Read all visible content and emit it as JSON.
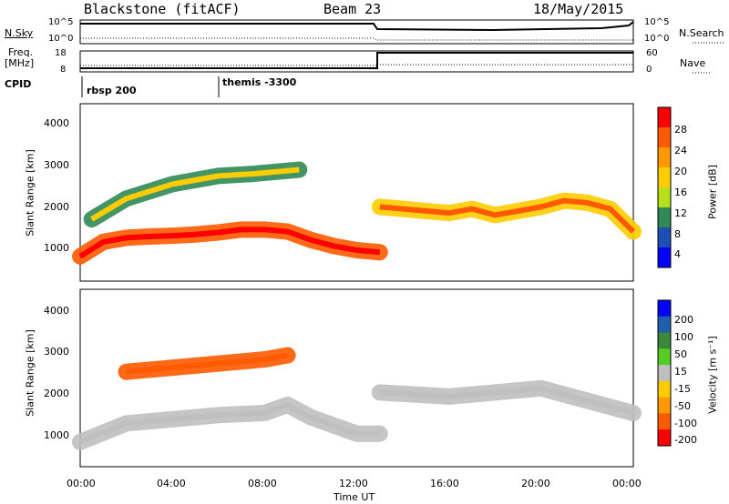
{
  "header": {
    "station": "Blackstone (fitACF)",
    "beam": "Beam 23",
    "date": "18/May/2015"
  },
  "top_panels": {
    "nsky_label": "N.Sky",
    "nsearch_label": "N.Search",
    "nsky_ticks": [
      "10^5",
      "10^0"
    ],
    "nsearch_ticks": [
      "10^5",
      "10^0"
    ],
    "freq_label_1": "Freq.",
    "freq_label_2": "[MHz]",
    "freq_ticks": [
      "18",
      "8"
    ],
    "nave_label": "Nave",
    "nave_ticks": [
      "60",
      "0"
    ],
    "cpid_label": "CPID",
    "cpid_1": "rbsp 200",
    "cpid_2": "themis -3300"
  },
  "power_colorbar": {
    "label": "Power [dB]",
    "ticks": [
      "28",
      "24",
      "20",
      "16",
      "12",
      "8",
      "4"
    ],
    "colors": [
      "#ff0000",
      "#ff5a00",
      "#ff9900",
      "#ffcc00",
      "#b7e01a",
      "#2f8a55",
      "#1c4fb5",
      "#0000ff"
    ]
  },
  "velocity_colorbar": {
    "label": "Velocity [m s⁻¹]",
    "ticks": [
      "200",
      "100",
      "50",
      "15",
      "-15",
      "-50",
      "-100",
      "-200"
    ],
    "colors": [
      "#0000ff",
      "#1f5fb0",
      "#3a8a3a",
      "#55cc22",
      "#bfbfbf",
      "#ffcc00",
      "#ff9900",
      "#ff5a00",
      "#ff0000"
    ]
  },
  "axes": {
    "ylabel": "Slant Range [km]",
    "xlabel": "Time UT",
    "xticks": [
      "00:00",
      "04:00",
      "08:00",
      "12:00",
      "16:00",
      "20:00",
      "00:00"
    ],
    "yticks": [
      "4000",
      "3000",
      "2000",
      "1000"
    ]
  },
  "chart_data": {
    "type": "heatmap",
    "x_unit": "hours UT",
    "x_range": [
      0,
      24
    ],
    "y_range_km": [
      200,
      4500
    ],
    "power_panel": {
      "colorbar_range_db": [
        0,
        30
      ],
      "echo_bands": [
        {
          "x": [
            0,
            1,
            2,
            3,
            4,
            5,
            6,
            7,
            8,
            9,
            10,
            11,
            12,
            13
          ],
          "y": [
            800,
            1150,
            1250,
            1280,
            1300,
            1330,
            1380,
            1450,
            1450,
            1400,
            1200,
            1050,
            950,
            900
          ],
          "power_db": 24
        },
        {
          "x": [
            0.5,
            2,
            4,
            6,
            7.5,
            9.5
          ],
          "y": [
            1700,
            2200,
            2550,
            2750,
            2800,
            2900
          ],
          "power_db": 10
        },
        {
          "x": [
            13,
            14,
            15,
            16,
            17,
            18,
            19,
            20,
            21,
            22,
            23,
            24
          ],
          "y": [
            2000,
            1950,
            1900,
            1850,
            1950,
            1800,
            1900,
            2000,
            2150,
            2100,
            1950,
            1400
          ],
          "power_db": 18
        }
      ]
    },
    "velocity_panel": {
      "colorbar_range_ms": [
        -200,
        200
      ],
      "echo_bands": [
        {
          "x": [
            0,
            2,
            4,
            6,
            8,
            9,
            10,
            12,
            13
          ],
          "y": [
            800,
            1250,
            1350,
            1450,
            1500,
            1700,
            1400,
            1000,
            1000
          ],
          "velocity_ms": 0
        },
        {
          "x": [
            2,
            4,
            6,
            8,
            9
          ],
          "y": [
            2500,
            2600,
            2700,
            2800,
            2900
          ],
          "velocity_ms": -120
        },
        {
          "x": [
            13,
            16,
            20,
            24
          ],
          "y": [
            2000,
            1900,
            2100,
            1500
          ],
          "velocity_ms": 0
        }
      ]
    }
  }
}
